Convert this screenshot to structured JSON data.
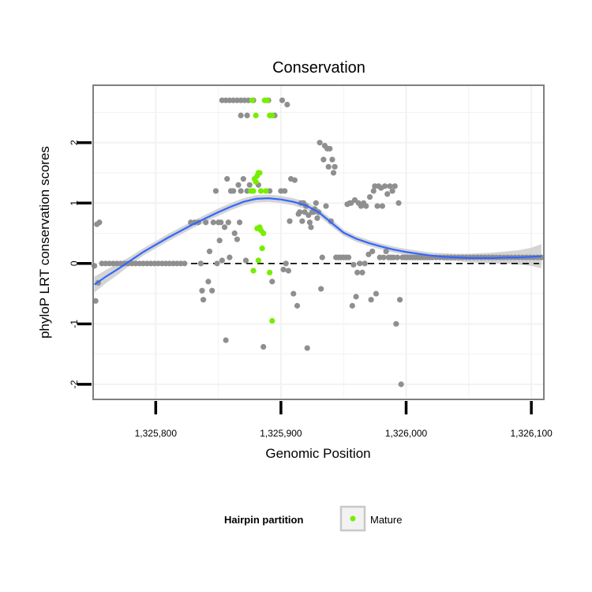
{
  "chart_data": {
    "type": "scatter",
    "title": "Conservation",
    "xlabel": "Genomic Position",
    "ylabel": "phyloP LRT conservation scores",
    "xlim": [
      1325750,
      1326110
    ],
    "ylim": [
      -2.25,
      2.95
    ],
    "x_ticks": [
      1325800,
      1325900,
      1326000,
      1326100
    ],
    "x_tick_labels": [
      "1,325,800",
      "1,325,900",
      "1,326,000",
      "1,326,100"
    ],
    "y_ticks": [
      -2,
      -1,
      0,
      1,
      2
    ],
    "y_tick_labels": [
      "-2",
      "-1",
      "0",
      "1",
      "2"
    ],
    "grid": true,
    "reference_line": {
      "y": 0,
      "style": "dashed"
    },
    "legend": {
      "title": "Hairpin partition",
      "entries": [
        "Mature"
      ],
      "position": "bottom"
    },
    "colors": {
      "other": "#8f8f8f",
      "mature": "#76ee00",
      "smooth": "#3366ff",
      "ribbon": "#cccccc",
      "panel_border": "#7f7f7f",
      "grid": "#f2f2f2"
    },
    "series": [
      {
        "name": "Other",
        "color": "#8f8f8f",
        "points": [
          [
            1325751,
            -0.04
          ],
          [
            1325752,
            -0.62
          ],
          [
            1325753,
            0.65
          ],
          [
            1325754,
            -0.32
          ],
          [
            1325755,
            0.68
          ],
          [
            1325757,
            0.0
          ],
          [
            1325760,
            0.0
          ],
          [
            1325763,
            0.0
          ],
          [
            1325766,
            0.0
          ],
          [
            1325769,
            0.0
          ],
          [
            1325772,
            0.0
          ],
          [
            1325775,
            0.0
          ],
          [
            1325778,
            0.0
          ],
          [
            1325781,
            0.0
          ],
          [
            1325784,
            0.0
          ],
          [
            1325787,
            0.0
          ],
          [
            1325790,
            0.0
          ],
          [
            1325793,
            0.0
          ],
          [
            1325796,
            0.0
          ],
          [
            1325799,
            0.0
          ],
          [
            1325802,
            0.0
          ],
          [
            1325805,
            0.0
          ],
          [
            1325808,
            0.0
          ],
          [
            1325811,
            0.0
          ],
          [
            1325814,
            0.0
          ],
          [
            1325817,
            0.0
          ],
          [
            1325820,
            0.0
          ],
          [
            1325823,
            0.0
          ],
          [
            1325828,
            0.68
          ],
          [
            1325831,
            0.68
          ],
          [
            1325834,
            0.68
          ],
          [
            1325836,
            0.0
          ],
          [
            1325837,
            -0.45
          ],
          [
            1325838,
            -0.6
          ],
          [
            1325840,
            0.68
          ],
          [
            1325842,
            -0.3
          ],
          [
            1325843,
            0.2
          ],
          [
            1325845,
            -0.45
          ],
          [
            1325846,
            0.68
          ],
          [
            1325848,
            1.2
          ],
          [
            1325849,
            0.0
          ],
          [
            1325850,
            0.68
          ],
          [
            1325851,
            0.38
          ],
          [
            1325852,
            0.68
          ],
          [
            1325853,
            0.05
          ],
          [
            1325855,
            0.6
          ],
          [
            1325856,
            -1.27
          ],
          [
            1325857,
            1.4
          ],
          [
            1325858,
            0.68
          ],
          [
            1325859,
            0.1
          ],
          [
            1325860,
            1.2
          ],
          [
            1325862,
            1.2
          ],
          [
            1325863,
            0.5
          ],
          [
            1325865,
            0.4
          ],
          [
            1325866,
            1.3
          ],
          [
            1325867,
            0.68
          ],
          [
            1325868,
            1.2
          ],
          [
            1325870,
            1.4
          ],
          [
            1325872,
            0.05
          ],
          [
            1325873,
            1.2
          ],
          [
            1325875,
            1.3
          ],
          [
            1325853,
            2.7
          ],
          [
            1325856,
            2.7
          ],
          [
            1325859,
            2.7
          ],
          [
            1325862,
            2.7
          ],
          [
            1325865,
            2.7
          ],
          [
            1325868,
            2.7
          ],
          [
            1325871,
            2.7
          ],
          [
            1325874,
            2.7
          ],
          [
            1325868,
            2.45
          ],
          [
            1325873,
            2.45
          ],
          [
            1325878,
            2.7
          ],
          [
            1325890,
            2.7
          ],
          [
            1325895,
            2.45
          ],
          [
            1325901,
            2.7
          ],
          [
            1325905,
            2.63
          ],
          [
            1325879,
            1.4
          ],
          [
            1325882,
            1.3
          ],
          [
            1325886,
            -1.38
          ],
          [
            1325891,
            1.2
          ],
          [
            1325893,
            -0.3
          ],
          [
            1325900,
            1.2
          ],
          [
            1325902,
            -0.1
          ],
          [
            1325903,
            1.2
          ],
          [
            1325904,
            0.0
          ],
          [
            1325906,
            -0.12
          ],
          [
            1325907,
            0.7
          ],
          [
            1325908,
            1.4
          ],
          [
            1325910,
            -0.5
          ],
          [
            1325911,
            1.38
          ],
          [
            1325913,
            -0.7
          ],
          [
            1325914,
            0.82
          ],
          [
            1325915,
            0.85
          ],
          [
            1325916,
            1.0
          ],
          [
            1325917,
            0.7
          ],
          [
            1325918,
            1.0
          ],
          [
            1325919,
            0.85
          ],
          [
            1325920,
            0.95
          ],
          [
            1325921,
            -1.4
          ],
          [
            1325922,
            0.8
          ],
          [
            1325923,
            0.68
          ],
          [
            1325924,
            0.6
          ],
          [
            1325925,
            0.85
          ],
          [
            1325926,
            0.85
          ],
          [
            1325927,
            0.9
          ],
          [
            1325928,
            1.0
          ],
          [
            1325929,
            0.75
          ],
          [
            1325930,
            0.85
          ],
          [
            1325931,
            2.0
          ],
          [
            1325932,
            -0.42
          ],
          [
            1325933,
            0.1
          ],
          [
            1325934,
            1.72
          ],
          [
            1325935,
            1.95
          ],
          [
            1325936,
            0.95
          ],
          [
            1325937,
            1.9
          ],
          [
            1325938,
            1.6
          ],
          [
            1325939,
            1.9
          ],
          [
            1325940,
            0.7
          ],
          [
            1325941,
            1.72
          ],
          [
            1325942,
            1.5
          ],
          [
            1325943,
            1.6
          ],
          [
            1325944,
            0.1
          ],
          [
            1325946,
            0.1
          ],
          [
            1325948,
            0.1
          ],
          [
            1325950,
            0.1
          ],
          [
            1325952,
            0.1
          ],
          [
            1325953,
            0.98
          ],
          [
            1325954,
            0.1
          ],
          [
            1325955,
            1.0
          ],
          [
            1325956,
            1.0
          ],
          [
            1325957,
            -0.7
          ],
          [
            1325958,
            -0.02
          ],
          [
            1325959,
            1.05
          ],
          [
            1325960,
            -0.55
          ],
          [
            1325961,
            -0.15
          ],
          [
            1325962,
            1.0
          ],
          [
            1325963,
            0.0
          ],
          [
            1325964,
            0.95
          ],
          [
            1325965,
            -0.15
          ],
          [
            1325966,
            1.0
          ],
          [
            1325967,
            0.0
          ],
          [
            1325968,
            0.95
          ],
          [
            1325970,
            0.15
          ],
          [
            1325971,
            1.1
          ],
          [
            1325972,
            -0.6
          ],
          [
            1325973,
            0.2
          ],
          [
            1325974,
            1.2
          ],
          [
            1325975,
            1.28
          ],
          [
            1325976,
            -0.5
          ],
          [
            1325977,
            0.95
          ],
          [
            1325978,
            1.28
          ],
          [
            1325979,
            0.1
          ],
          [
            1325980,
            1.25
          ],
          [
            1325981,
            0.95
          ],
          [
            1325982,
            0.1
          ],
          [
            1325983,
            1.28
          ],
          [
            1325984,
            0.2
          ],
          [
            1325985,
            1.15
          ],
          [
            1325986,
            0.1
          ],
          [
            1325987,
            1.28
          ],
          [
            1325988,
            0.1
          ],
          [
            1325989,
            1.2
          ],
          [
            1325990,
            0.1
          ],
          [
            1325991,
            1.28
          ],
          [
            1325992,
            -1.0
          ],
          [
            1325993,
            0.1
          ],
          [
            1325994,
            1.0
          ],
          [
            1325995,
            -0.6
          ],
          [
            1325996,
            -2.0
          ],
          [
            1325997,
            0.1
          ],
          [
            1325999,
            0.1
          ],
          [
            1326001,
            0.1
          ],
          [
            1326003,
            0.1
          ],
          [
            1326005,
            0.1
          ],
          [
            1326007,
            0.1
          ],
          [
            1326009,
            0.1
          ],
          [
            1326011,
            0.1
          ],
          [
            1326013,
            0.1
          ],
          [
            1326015,
            0.1
          ],
          [
            1326017,
            0.1
          ],
          [
            1326019,
            0.1
          ],
          [
            1326021,
            0.1
          ],
          [
            1326024,
            0.1
          ],
          [
            1326027,
            0.1
          ],
          [
            1326030,
            0.1
          ],
          [
            1326033,
            0.1
          ],
          [
            1326036,
            0.1
          ],
          [
            1326039,
            0.1
          ],
          [
            1326042,
            0.1
          ],
          [
            1326045,
            0.1
          ],
          [
            1326048,
            0.1
          ],
          [
            1326051,
            0.1
          ],
          [
            1326054,
            0.1
          ],
          [
            1326057,
            0.1
          ],
          [
            1326060,
            0.1
          ],
          [
            1326063,
            0.1
          ],
          [
            1326066,
            0.1
          ],
          [
            1326069,
            0.1
          ],
          [
            1326072,
            0.1
          ],
          [
            1326075,
            0.1
          ],
          [
            1326078,
            0.1
          ],
          [
            1326081,
            0.1
          ],
          [
            1326084,
            0.1
          ],
          [
            1326087,
            0.1
          ],
          [
            1326090,
            0.1
          ],
          [
            1326093,
            0.1
          ],
          [
            1326096,
            0.1
          ],
          [
            1326099,
            0.1
          ],
          [
            1326102,
            0.1
          ],
          [
            1326105,
            0.1
          ],
          [
            1326108,
            0.1
          ]
        ]
      },
      {
        "name": "Mature",
        "color": "#76ee00",
        "points": [
          [
            1325877,
            2.7
          ],
          [
            1325880,
            2.45
          ],
          [
            1325887,
            2.7
          ],
          [
            1325889,
            2.7
          ],
          [
            1325891,
            2.45
          ],
          [
            1325893,
            2.45
          ],
          [
            1325876,
            1.2
          ],
          [
            1325878,
            1.2
          ],
          [
            1325879,
            1.4
          ],
          [
            1325880,
            1.35
          ],
          [
            1325881,
            1.45
          ],
          [
            1325882,
            1.5
          ],
          [
            1325883,
            1.5
          ],
          [
            1325884,
            1.2
          ],
          [
            1325881,
            0.58
          ],
          [
            1325883,
            0.6
          ],
          [
            1325884,
            0.55
          ],
          [
            1325885,
            0.25
          ],
          [
            1325886,
            0.5
          ],
          [
            1325878,
            -0.12
          ],
          [
            1325882,
            0.05
          ],
          [
            1325888,
            1.2
          ],
          [
            1325891,
            -0.15
          ],
          [
            1325893,
            -0.95
          ]
        ]
      }
    ],
    "smooth_fit": {
      "x": [
        1325751,
        1325760,
        1325770,
        1325780,
        1325790,
        1325800,
        1325810,
        1325820,
        1325830,
        1325840,
        1325850,
        1325860,
        1325870,
        1325880,
        1325890,
        1325900,
        1325910,
        1325920,
        1325930,
        1325940,
        1325950,
        1325960,
        1325970,
        1325980,
        1325990,
        1326000,
        1326010,
        1326020,
        1326030,
        1326040,
        1326050,
        1326060,
        1326070,
        1326080,
        1326090,
        1326100,
        1326108
      ],
      "y": [
        -0.35,
        -0.22,
        -0.09,
        0.05,
        0.19,
        0.31,
        0.43,
        0.54,
        0.65,
        0.75,
        0.85,
        0.94,
        1.02,
        1.07,
        1.08,
        1.06,
        1.02,
        0.96,
        0.85,
        0.68,
        0.51,
        0.41,
        0.34,
        0.28,
        0.23,
        0.19,
        0.16,
        0.13,
        0.11,
        0.1,
        0.09,
        0.09,
        0.09,
        0.1,
        0.1,
        0.11,
        0.12
      ],
      "se": [
        0.13,
        0.11,
        0.09,
        0.07,
        0.06,
        0.06,
        0.06,
        0.06,
        0.06,
        0.06,
        0.06,
        0.06,
        0.06,
        0.06,
        0.06,
        0.06,
        0.06,
        0.06,
        0.06,
        0.06,
        0.05,
        0.05,
        0.05,
        0.05,
        0.05,
        0.05,
        0.05,
        0.05,
        0.06,
        0.06,
        0.07,
        0.08,
        0.09,
        0.1,
        0.12,
        0.15,
        0.2
      ]
    }
  }
}
